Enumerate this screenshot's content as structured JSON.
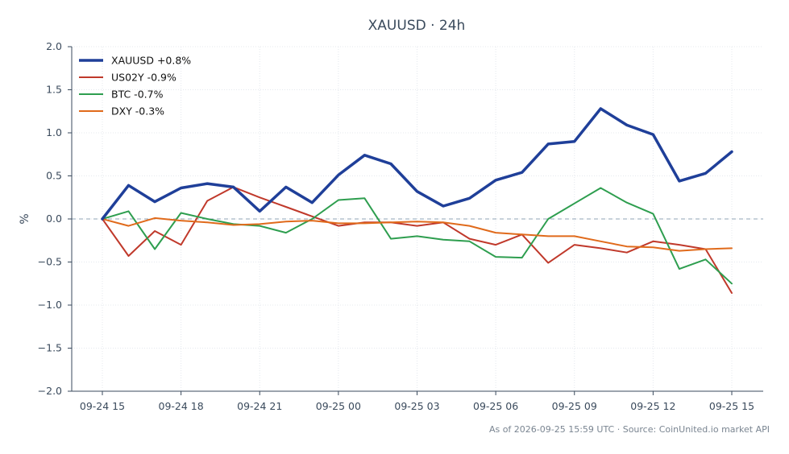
{
  "chart_data": {
    "type": "line",
    "title": "XAUUSD · 24h",
    "xlabel": "",
    "ylabel": "%",
    "ylim": [
      -2.0,
      2.0
    ],
    "yticks": [
      "2.0",
      "1.5",
      "1.0",
      "0.5",
      "0.0",
      "−0.5",
      "−1.0",
      "−1.5",
      "−2.0"
    ],
    "ytick_values": [
      2.0,
      1.5,
      1.0,
      0.5,
      0.0,
      -0.5,
      -1.0,
      -1.5,
      -2.0
    ],
    "x": [
      "09-24 15:00",
      "09-24 16:00",
      "09-24 17:00",
      "09-24 18:00",
      "09-24 19:00",
      "09-24 20:00",
      "09-24 21:00",
      "09-24 22:00",
      "09-24 23:00",
      "09-25 00:00",
      "09-25 01:00",
      "09-25 02:00",
      "09-25 03:00",
      "09-25 04:00",
      "09-25 05:00",
      "09-25 06:00",
      "09-25 07:00",
      "09-25 08:00",
      "09-25 09:00",
      "09-25 10:00",
      "09-25 11:00",
      "09-25 12:00",
      "09-25 13:00",
      "09-25 14:00",
      "09-25 15:00"
    ],
    "xtick_labels": [
      "09-24 15",
      "09-24 18",
      "09-24 21",
      "09-25 00",
      "09-25 03",
      "09-25 06",
      "09-25 09",
      "09-25 12",
      "09-25 15"
    ],
    "xtick_index": [
      0,
      3,
      6,
      9,
      12,
      15,
      18,
      21,
      24
    ],
    "grid": true,
    "zero_line": true,
    "legend_position": "top-left",
    "series": [
      {
        "name": "XAUUSD +0.8%",
        "color": "#1f3f99",
        "width": 3.5,
        "values": [
          0.0,
          0.39,
          0.2,
          0.36,
          0.41,
          0.37,
          0.09,
          0.37,
          0.19,
          0.51,
          0.74,
          0.64,
          0.32,
          0.15,
          0.24,
          0.45,
          0.54,
          0.87,
          0.9,
          1.28,
          1.09,
          0.98,
          0.44,
          0.53,
          0.78
        ]
      },
      {
        "name": "US02Y -0.9%",
        "color": "#c0392b",
        "width": 2,
        "values": [
          0.0,
          -0.43,
          -0.14,
          -0.3,
          0.21,
          0.37,
          0.25,
          0.14,
          0.03,
          -0.08,
          -0.04,
          -0.04,
          -0.08,
          -0.04,
          -0.23,
          -0.3,
          -0.18,
          -0.51,
          -0.3,
          -0.34,
          -0.39,
          -0.26,
          -0.3,
          -0.35,
          -0.86
        ]
      },
      {
        "name": "BTC -0.7%",
        "color": "#2e9e4f",
        "width": 2,
        "values": [
          0.0,
          0.09,
          -0.35,
          0.07,
          0.0,
          -0.06,
          -0.08,
          -0.16,
          0.0,
          0.22,
          0.24,
          -0.23,
          -0.2,
          -0.24,
          -0.26,
          -0.44,
          -0.45,
          0.0,
          0.18,
          0.36,
          0.19,
          0.06,
          -0.58,
          -0.47,
          -0.75
        ]
      },
      {
        "name": "DXY -0.3%",
        "color": "#e06a1b",
        "width": 2,
        "values": [
          0.0,
          -0.08,
          0.01,
          -0.02,
          -0.04,
          -0.07,
          -0.06,
          -0.03,
          -0.02,
          -0.05,
          -0.05,
          -0.04,
          -0.03,
          -0.04,
          -0.08,
          -0.16,
          -0.18,
          -0.2,
          -0.2,
          -0.26,
          -0.32,
          -0.33,
          -0.37,
          -0.35,
          -0.34
        ]
      }
    ]
  },
  "footer": "As of 2026-09-25 15:59 UTC · Source: CoinUnited.io market API",
  "colors": {
    "axis": "#3a4a5c",
    "grid": "#e4e8ee",
    "zero_line": "#8fa3b5"
  }
}
